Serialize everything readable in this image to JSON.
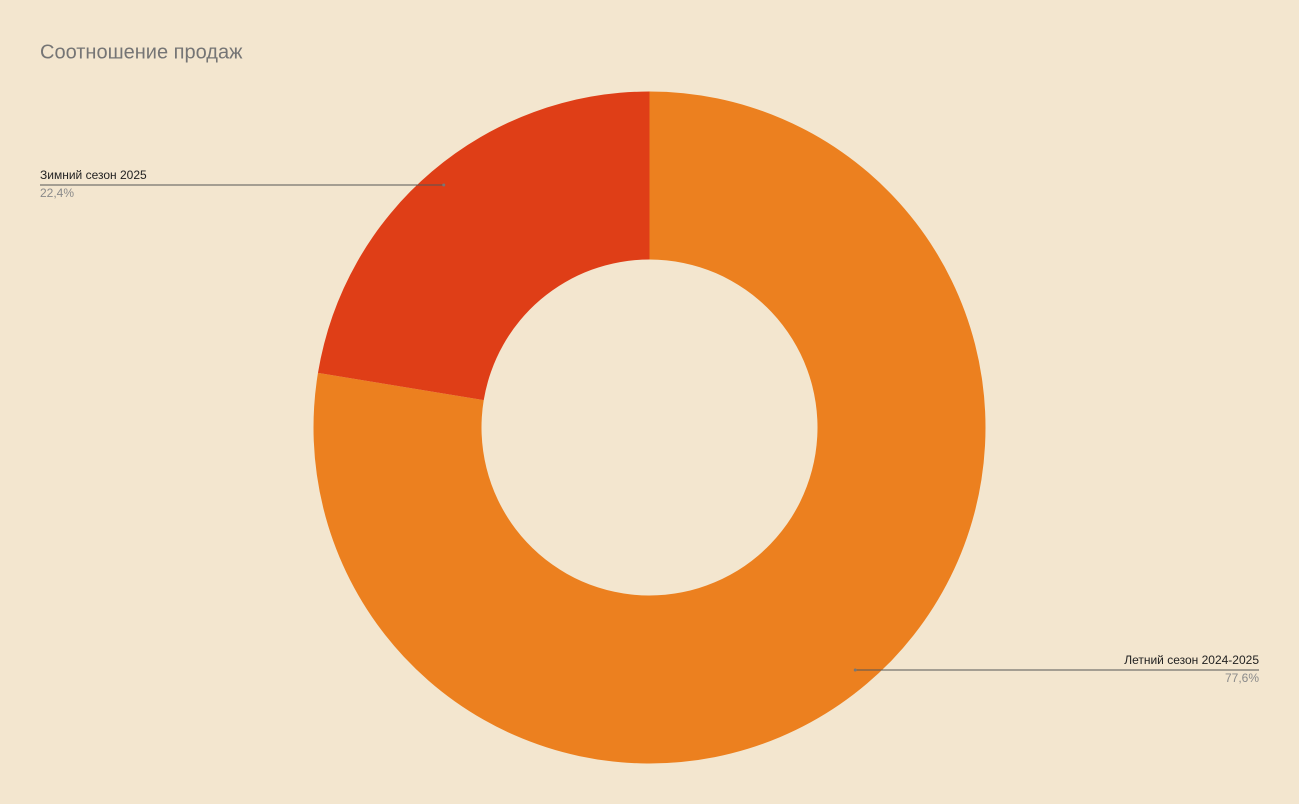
{
  "chart_data": {
    "type": "donut",
    "title": "Соотношение продаж",
    "categories": [
      "Летний сезон 2024-2025",
      "Зимний сезон 2025"
    ],
    "values": [
      77.6,
      22.4
    ],
    "value_labels": [
      "77,6%",
      "22,4%"
    ],
    "colors": [
      "#ec801f",
      "#df3e17"
    ]
  }
}
